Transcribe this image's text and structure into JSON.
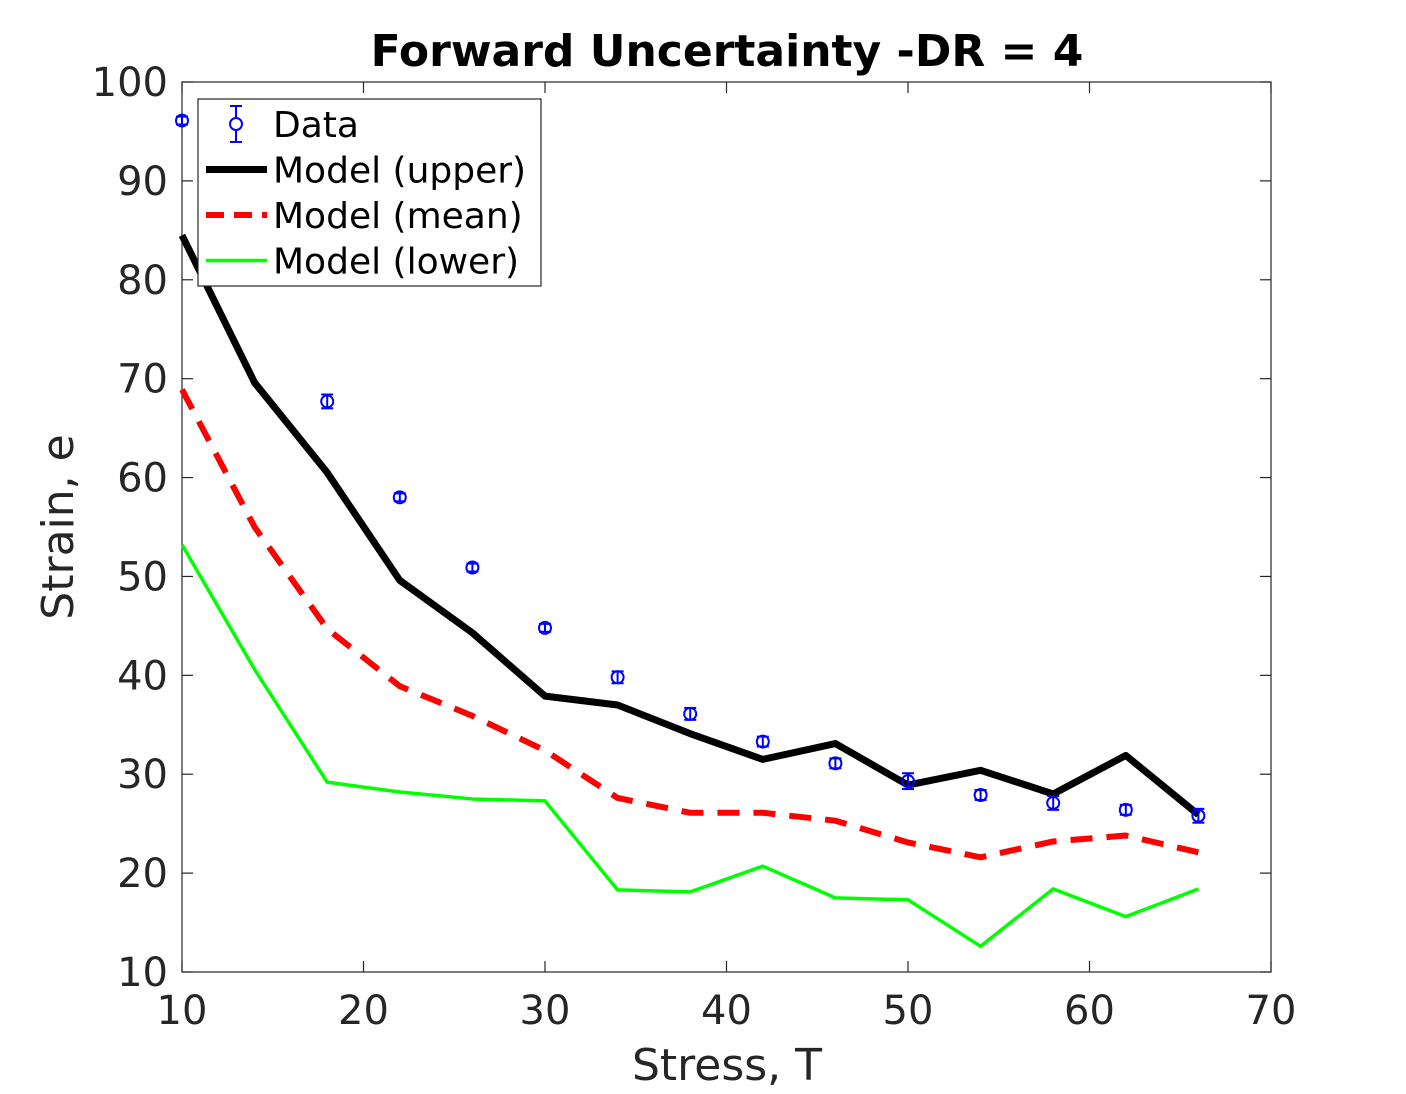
{
  "chart_data": {
    "type": "line",
    "title": "Forward Uncertainty -DR = 4",
    "xlabel": "Stress, T",
    "ylabel": "Strain, e",
    "xlim": [
      10,
      70
    ],
    "ylim": [
      10,
      100
    ],
    "xticks": [
      10,
      20,
      30,
      40,
      50,
      60,
      70
    ],
    "yticks": [
      10,
      20,
      30,
      40,
      50,
      60,
      70,
      80,
      90,
      100
    ],
    "grid": false,
    "legend_position": "top-left",
    "series": [
      {
        "name": "Data",
        "kind": "errorbar",
        "color": "#0000ff",
        "x": [
          10,
          18,
          22,
          26,
          30,
          34,
          38,
          42,
          46,
          50,
          54,
          58,
          62,
          66
        ],
        "y": [
          96.1,
          67.7,
          58.0,
          50.9,
          44.8,
          39.8,
          36.1,
          33.3,
          31.1,
          29.3,
          27.9,
          27.1,
          26.4,
          25.8
        ],
        "err": [
          0.4,
          0.7,
          0.4,
          0.4,
          0.4,
          0.6,
          0.6,
          0.5,
          0.5,
          0.8,
          0.5,
          0.7,
          0.5,
          0.7
        ]
      },
      {
        "name": "Model (upper)",
        "kind": "line",
        "color": "#000000",
        "dash": "solid",
        "x": [
          10,
          14,
          18,
          22,
          26,
          30,
          34,
          38,
          42,
          46,
          50,
          54,
          58,
          62,
          66
        ],
        "y": [
          84.5,
          69.6,
          60.5,
          49.6,
          44.3,
          37.9,
          37.0,
          34.1,
          31.5,
          33.1,
          28.9,
          30.4,
          28.0,
          31.9,
          25.9
        ]
      },
      {
        "name": "Model (mean)",
        "kind": "line",
        "color": "#ff0000",
        "dash": "dashed",
        "x": [
          10,
          14,
          18,
          22,
          26,
          30,
          34,
          38,
          42,
          46,
          50,
          54,
          58,
          62,
          66
        ],
        "y": [
          68.9,
          55.0,
          44.7,
          38.9,
          35.9,
          32.4,
          27.6,
          26.1,
          26.1,
          25.3,
          23.1,
          21.6,
          23.2,
          23.8,
          22.1
        ]
      },
      {
        "name": "Model (lower)",
        "kind": "line",
        "color": "#00ff00",
        "dash": "solid",
        "x": [
          10,
          14,
          18,
          22,
          26,
          30,
          34,
          38,
          42,
          46,
          50,
          54,
          58,
          62,
          66
        ],
        "y": [
          53.2,
          40.6,
          29.2,
          28.2,
          27.5,
          27.3,
          18.3,
          18.1,
          20.7,
          17.5,
          17.3,
          12.6,
          18.4,
          15.6,
          18.4
        ]
      }
    ]
  }
}
